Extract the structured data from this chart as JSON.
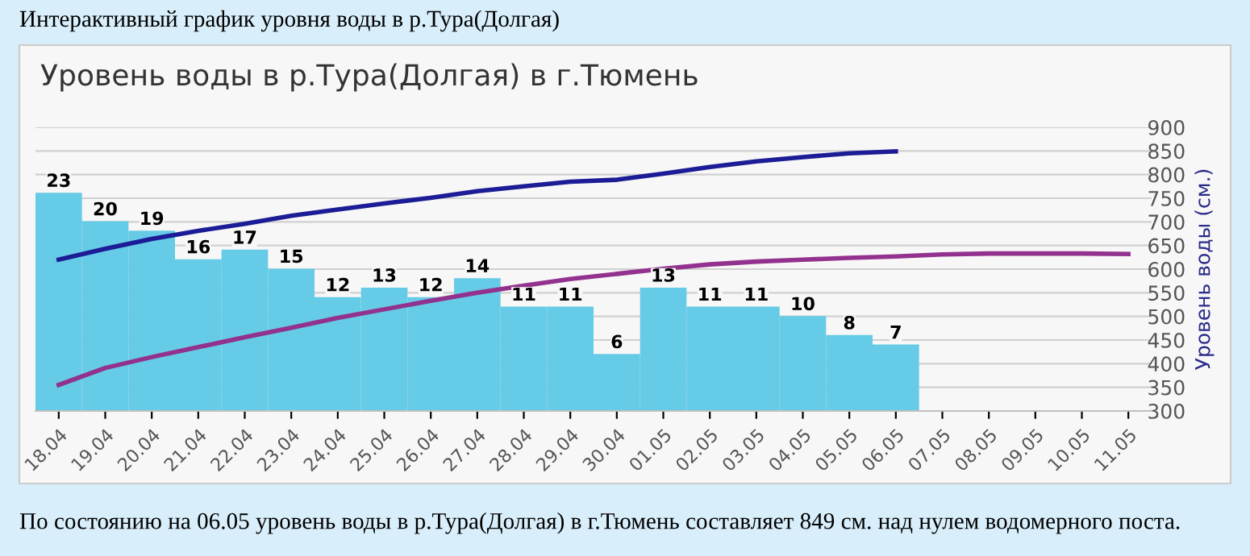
{
  "chart_data": {
    "type": "bar",
    "title": "Уровень воды в р.Тура(Долгая) в г.Тюмень",
    "y2label": "Уровень воды (см.)",
    "annotations": [
      "Интерактивный график уровня воды в р.Тура(Долгая)",
      "По состоянию на 06.05 уровень воды в р.Тура(Долгая) в г.Тюмень составляет 849 см. над нулем водомерного поста."
    ],
    "categories": [
      "18.04",
      "19.04",
      "20.04",
      "21.04",
      "22.04",
      "23.04",
      "24.04",
      "25.04",
      "26.04",
      "27.04",
      "28.04",
      "29.04",
      "30.04",
      "01.05",
      "02.05",
      "03.05",
      "04.05",
      "05.05",
      "06.05",
      "07.05",
      "08.05",
      "09.05",
      "10.05",
      "11.05"
    ],
    "series": [
      {
        "color": "#66cbe6",
        "values": [
          23,
          20,
          19,
          16,
          17,
          15,
          12,
          13,
          12,
          14,
          11,
          11,
          6,
          13,
          11,
          11,
          10,
          8,
          7,
          null,
          null,
          null,
          null,
          null
        ],
        "value_labels": [
          "23",
          "20",
          "19",
          "16",
          "17",
          "15",
          "12",
          "13",
          "12",
          "14",
          "11",
          "11",
          "6",
          "13",
          "11",
          "11",
          "10",
          "8",
          "7",
          null,
          null,
          null,
          null,
          null
        ]
      },
      {
        "type": "line",
        "axis": "y2",
        "color": "#1c1c96",
        "values": [
          620,
          643,
          664,
          681,
          696,
          713,
          726,
          739,
          751,
          765,
          775,
          785,
          789,
          802,
          816,
          828,
          837,
          845,
          849,
          null,
          null,
          null,
          null,
          null
        ]
      },
      {
        "type": "line",
        "axis": "y2",
        "color": "#93318f",
        "values": [
          355,
          391,
          414,
          435,
          456,
          476,
          497,
          515,
          533,
          550,
          565,
          579,
          590,
          601,
          610,
          616,
          620,
          624,
          627,
          631,
          633,
          633,
          633,
          632
        ]
      }
    ],
    "y2lim": [
      300,
      900
    ],
    "y2ticks": [
      300,
      350,
      400,
      450,
      500,
      550,
      600,
      650,
      700,
      750,
      800,
      850,
      900
    ],
    "grid": "y2",
    "marker": "none",
    "line_style": "solid"
  }
}
